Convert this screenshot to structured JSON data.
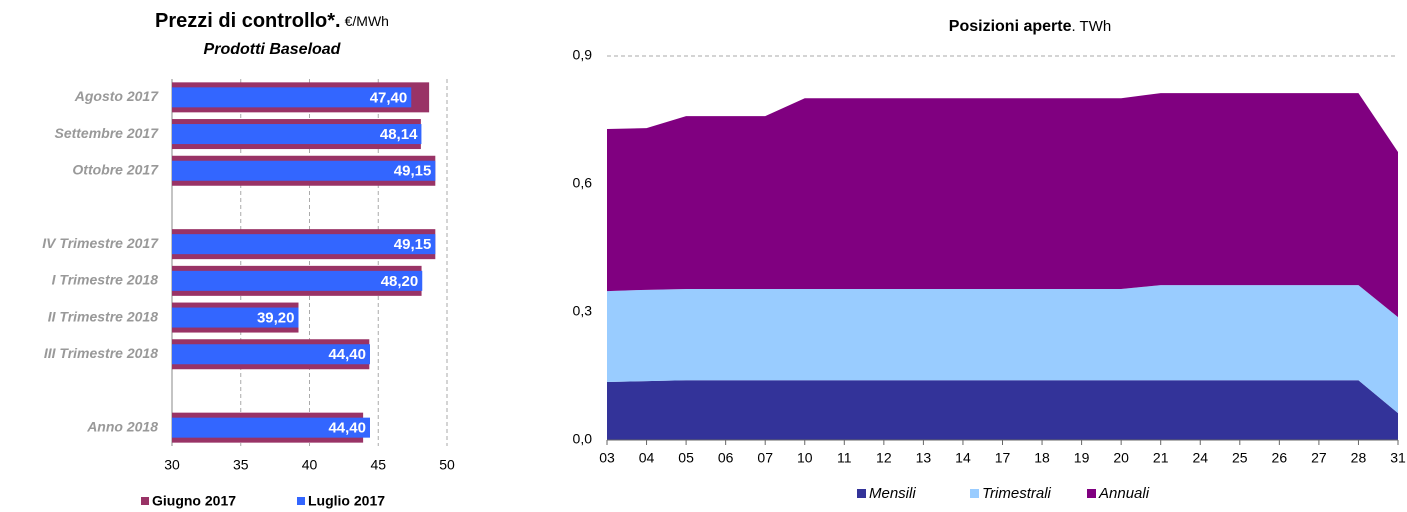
{
  "chart_data": [
    {
      "type": "hbar",
      "title": "Prezzi di controllo*.",
      "title_unit": "€/MWh",
      "subtitle": "Prodotti Baseload",
      "categories": [
        "Agosto 2017",
        "Settembre 2017",
        "Ottobre 2017",
        null,
        "IV Trimestre 2017",
        "I Trimestre 2018",
        "II Trimestre 2018",
        "III Trimestre 2018",
        null,
        "Anno 2018"
      ],
      "series": [
        {
          "name": "Giugno 2017",
          "color": "#993366",
          "values": [
            48.7,
            48.1,
            49.15,
            null,
            49.15,
            48.15,
            39.2,
            44.35,
            null,
            43.9
          ]
        },
        {
          "name": "Luglio 2017",
          "color": "#3366ff",
          "values": [
            47.4,
            48.14,
            49.15,
            null,
            49.15,
            48.2,
            39.2,
            44.4,
            null,
            44.4
          ],
          "value_labels": [
            "47,40",
            "48,14",
            "49,15",
            null,
            "49,15",
            "48,20",
            "39,20",
            "44,40",
            null,
            "44,40"
          ]
        }
      ],
      "xlim": [
        30,
        50
      ],
      "xticks": [
        30,
        35,
        40,
        45,
        50
      ],
      "grid": true
    },
    {
      "type": "area",
      "title": "Posizioni aperte",
      "title_unit": ". TWh",
      "categories": [
        "03",
        "04",
        "05",
        "06",
        "07",
        "10",
        "11",
        "12",
        "13",
        "14",
        "17",
        "18",
        "19",
        "20",
        "21",
        "24",
        "25",
        "26",
        "27",
        "28",
        "31"
      ],
      "series": [
        {
          "name": "Mensili",
          "color": "#333399",
          "values": [
            0.136,
            0.138,
            0.14,
            0.14,
            0.14,
            0.14,
            0.14,
            0.14,
            0.14,
            0.14,
            0.14,
            0.14,
            0.14,
            0.14,
            0.14,
            0.14,
            0.14,
            0.14,
            0.14,
            0.14,
            0.063
          ]
        },
        {
          "name": "Trimestrali",
          "color": "#99ccff",
          "values": [
            0.213,
            0.214,
            0.214,
            0.214,
            0.214,
            0.214,
            0.214,
            0.214,
            0.214,
            0.214,
            0.214,
            0.214,
            0.214,
            0.214,
            0.223,
            0.223,
            0.223,
            0.223,
            0.223,
            0.223,
            0.225
          ]
        },
        {
          "name": "Annuali",
          "color": "#800080",
          "values": [
            0.38,
            0.379,
            0.405,
            0.405,
            0.405,
            0.447,
            0.447,
            0.447,
            0.447,
            0.447,
            0.447,
            0.447,
            0.447,
            0.447,
            0.45,
            0.45,
            0.45,
            0.45,
            0.45,
            0.45,
            0.387
          ]
        }
      ],
      "ylim": [
        0,
        0.9
      ],
      "yticks": [
        {
          "value": 0,
          "label": "0,0"
        },
        {
          "value": 0.3,
          "label": "0,3"
        },
        {
          "value": 0.6,
          "label": "0,6"
        },
        {
          "value": 0.9,
          "label": "0,9"
        }
      ],
      "grid": true
    }
  ]
}
